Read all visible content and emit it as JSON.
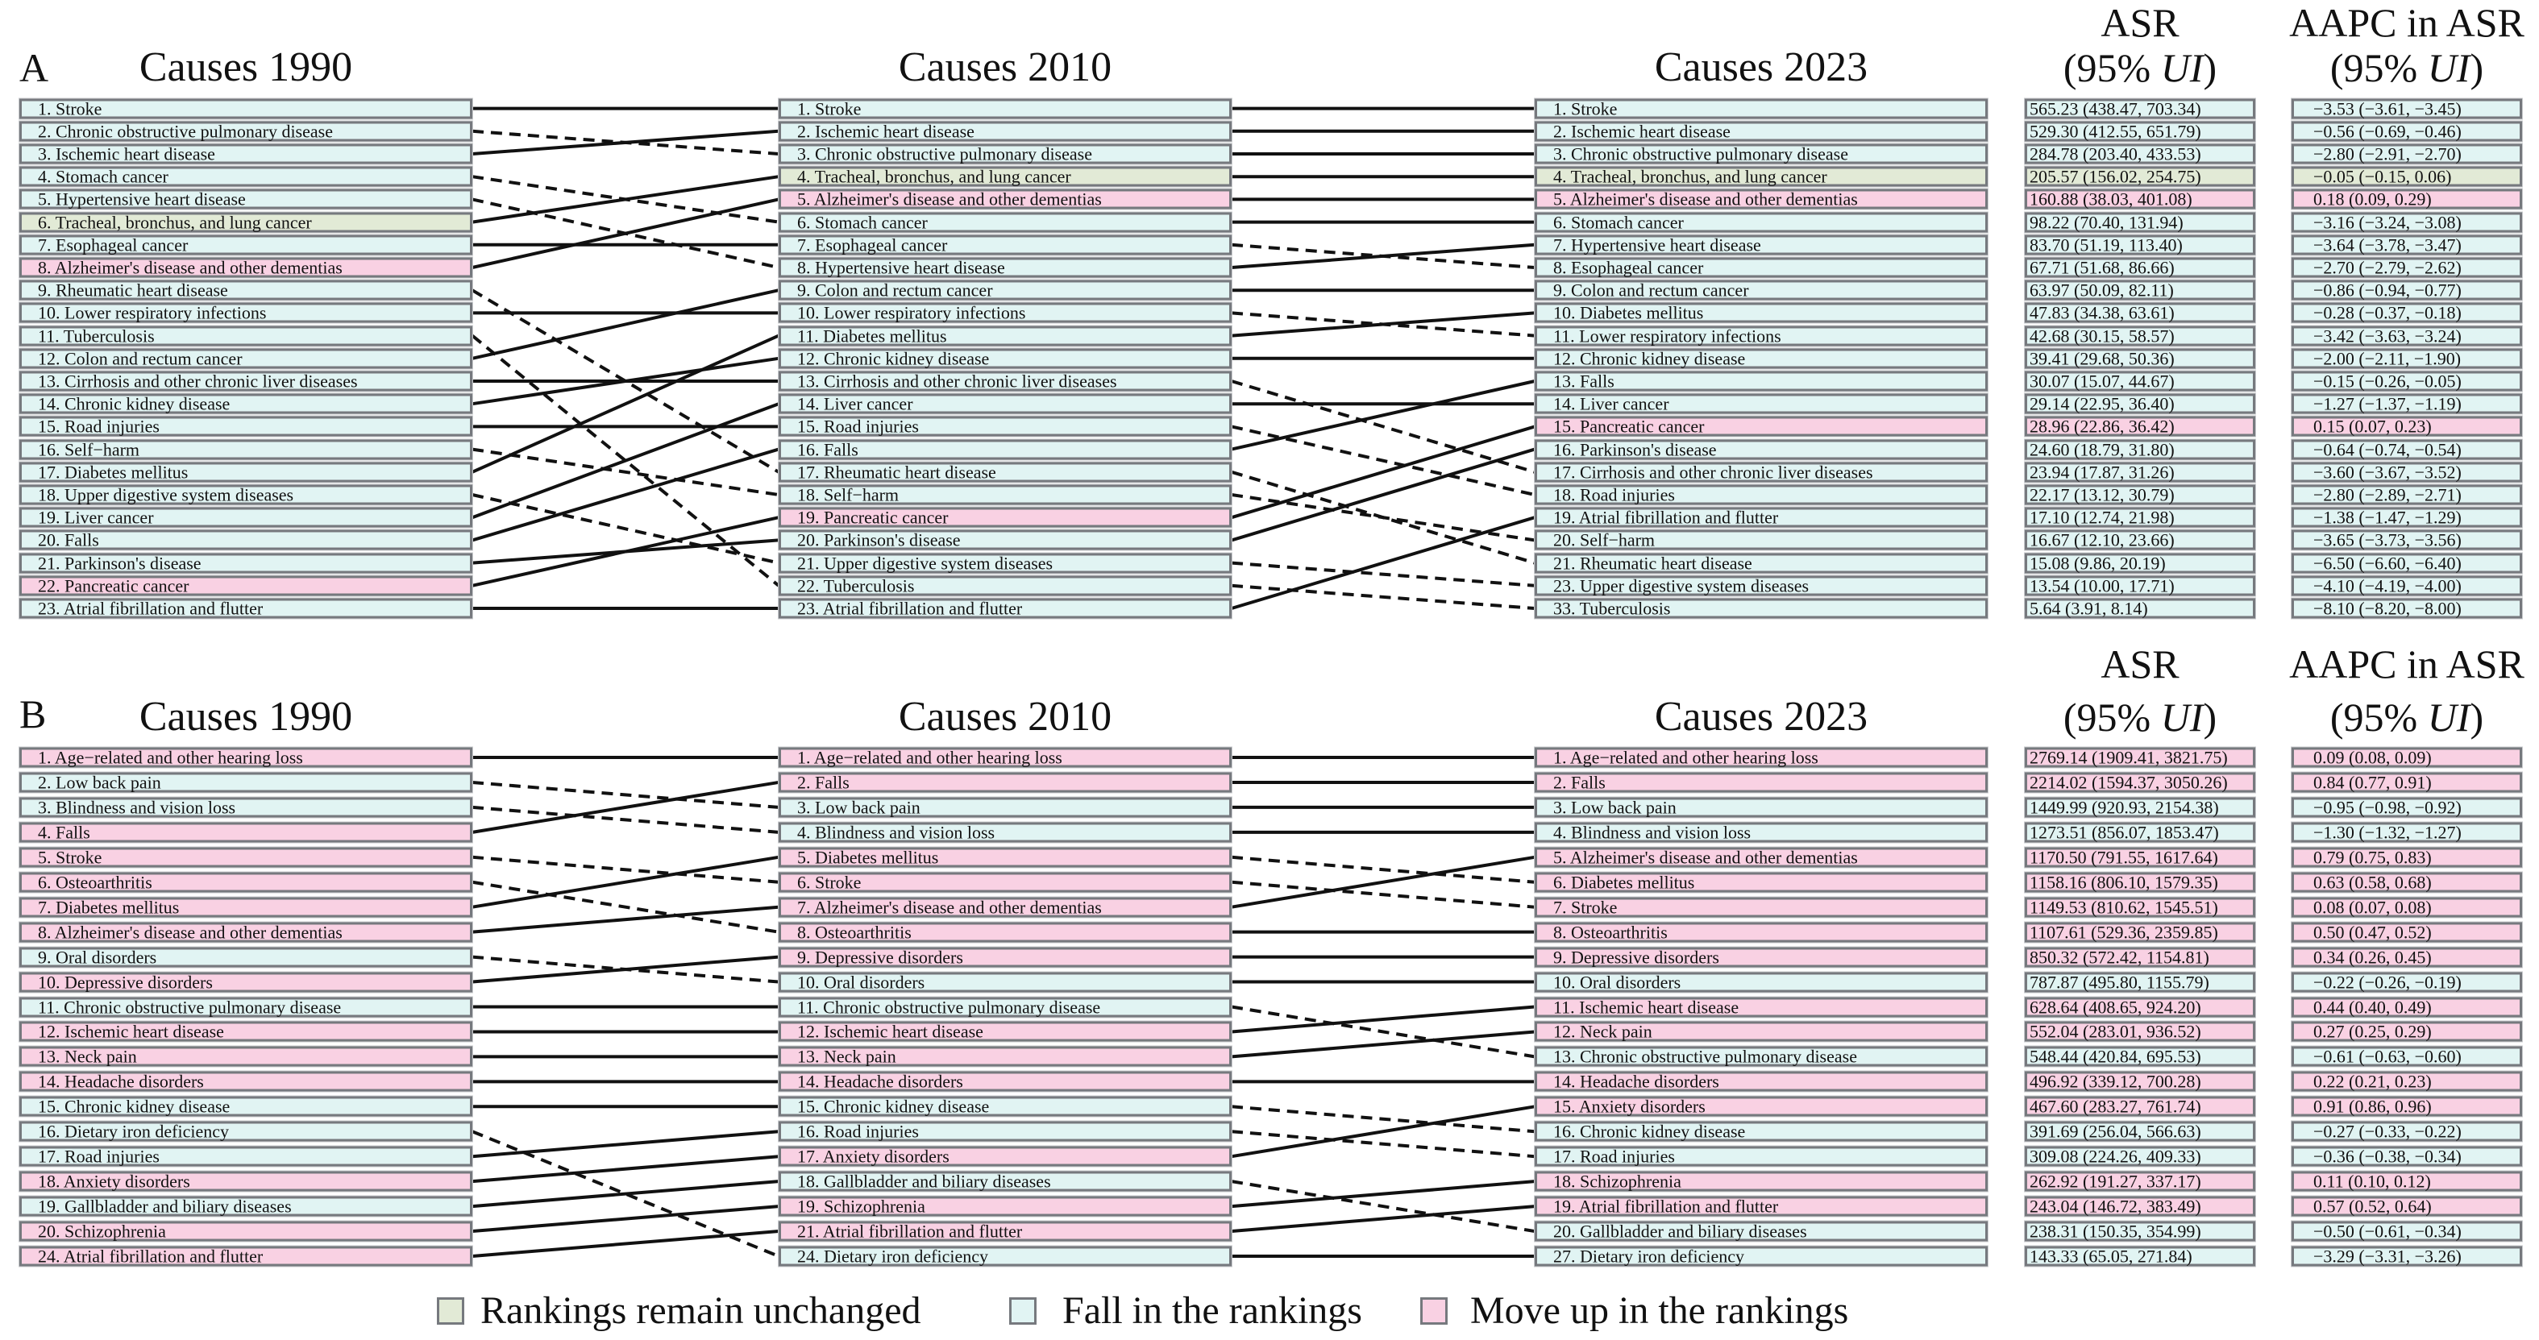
{
  "colors": {
    "unchanged": "#e2ead6",
    "fall": "#e1f4f3",
    "up": "#f9d1e3",
    "border": "#76797e",
    "line": "#111111"
  },
  "legend": [
    {
      "status": "unchanged",
      "label": "Rankings remain unchanged"
    },
    {
      "status": "fall",
      "label": "Fall in the rankings"
    },
    {
      "status": "up",
      "label": "Move up in the rankings"
    }
  ],
  "chart_data": {
    "type": "bump",
    "line_style": {
      "solid": "rank rises or stays",
      "dashed": "rank falls"
    },
    "panels": [
      {
        "label": "A",
        "asr_title": "ASR",
        "aapc_title": "AAPC in ASR",
        "ci_open": "(95% ",
        "ci_italic": "UI",
        "ci_close": ")",
        "columns": [
          {
            "title": "Causes 1990",
            "items": [
              "1. Stroke",
              "2. Chronic obstructive pulmonary disease",
              "3. Ischemic heart disease",
              "4. Stomach cancer",
              "5. Hypertensive heart disease",
              "6. Tracheal, bronchus, and lung cancer",
              "7. Esophageal cancer",
              "8. Alzheimer's disease and other dementias",
              "9. Rheumatic heart disease",
              "10. Lower respiratory infections",
              "11. Tuberculosis",
              "12. Colon and rectum cancer",
              "13. Cirrhosis and other chronic liver diseases",
              "14. Chronic kidney disease",
              "15. Road injuries",
              "16. Self−harm",
              "17. Diabetes mellitus",
              "18. Upper digestive system diseases",
              "19. Liver cancer",
              "20. Falls",
              "21. Parkinson's disease",
              "22. Pancreatic cancer",
              "23. Atrial fibrillation and flutter"
            ]
          },
          {
            "title": "Causes 2010",
            "items": [
              "1. Stroke",
              "2. Ischemic heart disease",
              "3. Chronic obstructive pulmonary disease",
              "4. Tracheal, bronchus, and lung cancer",
              "5. Alzheimer's disease and other dementias",
              "6. Stomach cancer",
              "7. Esophageal cancer",
              "8. Hypertensive heart disease",
              "9. Colon and rectum cancer",
              "10. Lower respiratory infections",
              "11. Diabetes mellitus",
              "12. Chronic kidney disease",
              "13. Cirrhosis and other chronic liver diseases",
              "14. Liver cancer",
              "15. Road injuries",
              "16. Falls",
              "17. Rheumatic heart disease",
              "18. Self−harm",
              "19. Pancreatic cancer",
              "20. Parkinson's disease",
              "21. Upper digestive system diseases",
              "22. Tuberculosis",
              "23. Atrial fibrillation and flutter"
            ]
          },
          {
            "title": "Causes 2023",
            "items": [
              "1. Stroke",
              "2. Ischemic heart disease",
              "3. Chronic obstructive pulmonary disease",
              "4. Tracheal, bronchus, and lung cancer",
              "5. Alzheimer's disease and other dementias",
              "6. Stomach cancer",
              "7. Hypertensive heart disease",
              "8. Esophageal cancer",
              "9. Colon and rectum cancer",
              "10. Diabetes mellitus",
              "11. Lower respiratory infections",
              "12. Chronic kidney disease",
              "13. Falls",
              "14. Liver cancer",
              "15. Pancreatic cancer",
              "16. Parkinson's disease",
              "17. Cirrhosis and other chronic liver diseases",
              "18. Road injuries",
              "19. Atrial fibrillation and flutter",
              "20. Self−harm",
              "21. Rheumatic heart disease",
              "23. Upper digestive system diseases",
              "33. Tuberculosis"
            ]
          }
        ],
        "status": {
          "Tracheal, bronchus, and lung cancer": "unchanged",
          "Alzheimer's disease and other dementias": "up",
          "Pancreatic cancer": "up",
          "default": "fall"
        },
        "asr": [
          "565.23 (438.47, 703.34)",
          "529.30 (412.55, 651.79)",
          "284.78 (203.40, 433.53)",
          "205.57 (156.02, 254.75)",
          "160.88 (38.03, 401.08)",
          "98.22 (70.40, 131.94)",
          "83.70 (51.19, 113.40)",
          "67.71 (51.68, 86.66)",
          "63.97 (50.09, 82.11)",
          "47.83 (34.38, 63.61)",
          "42.68 (30.15, 58.57)",
          "39.41 (29.68, 50.36)",
          "30.07 (15.07, 44.67)",
          "29.14 (22.95, 36.40)",
          "28.96 (22.86, 36.42)",
          "24.60 (18.79, 31.80)",
          "23.94 (17.87, 31.26)",
          "22.17 (13.12, 30.79)",
          "17.10 (12.74, 21.98)",
          "16.67 (12.10, 23.66)",
          "15.08 (9.86, 20.19)",
          "13.54 (10.00, 17.71)",
          "5.64 (3.91, 8.14)"
        ],
        "aapc": [
          "−3.53 (−3.61, −3.45)",
          "−0.56 (−0.69, −0.46)",
          "−2.80 (−2.91, −2.70)",
          "−0.05 (−0.15, 0.06)",
          "0.18 (0.09, 0.29)",
          "−3.16 (−3.24, −3.08)",
          "−3.64 (−3.78, −3.47)",
          "−2.70 (−2.79, −2.62)",
          "−0.86 (−0.94, −0.77)",
          "−0.28 (−0.37, −0.18)",
          "−3.42 (−3.63, −3.24)",
          "−2.00 (−2.11, −1.90)",
          "−0.15 (−0.26, −0.05)",
          "−1.27 (−1.37, −1.19)",
          "0.15 (0.07, 0.23)",
          "−0.64 (−0.74, −0.54)",
          "−3.60 (−3.67, −3.52)",
          "−2.80 (−2.89, −2.71)",
          "−1.38 (−1.47, −1.29)",
          "−3.65 (−3.73, −3.56)",
          "−6.50 (−6.60, −6.40)",
          "−4.10 (−4.19, −4.00)",
          "−8.10 (−8.20, −8.00)"
        ]
      },
      {
        "label": "B",
        "asr_title": "ASR",
        "aapc_title": "AAPC in ASR",
        "ci_open": "(95% ",
        "ci_italic": "UI",
        "ci_close": ")",
        "columns": [
          {
            "title": "Causes 1990",
            "items": [
              "1. Age−related and other hearing loss",
              "2. Low back pain",
              "3. Blindness and vision loss",
              "4. Falls",
              "5. Stroke",
              "6. Osteoarthritis",
              "7. Diabetes mellitus",
              "8. Alzheimer's disease and other dementias",
              "9. Oral disorders",
              "10. Depressive disorders",
              "11. Chronic obstructive pulmonary disease",
              "12. Ischemic heart disease",
              "13. Neck pain",
              "14. Headache disorders",
              "15. Chronic kidney disease",
              "16. Dietary iron deficiency",
              "17. Road injuries",
              "18. Anxiety disorders",
              "19. Gallbladder and biliary diseases",
              "20. Schizophrenia",
              "24. Atrial fibrillation and flutter"
            ]
          },
          {
            "title": "Causes 2010",
            "items": [
              "1. Age−related and other hearing loss",
              "2. Falls",
              "3. Low back pain",
              "4. Blindness and vision loss",
              "5. Diabetes mellitus",
              "6. Stroke",
              "7. Alzheimer's disease and other dementias",
              "8. Osteoarthritis",
              "9. Depressive disorders",
              "10. Oral disorders",
              "11. Chronic obstructive pulmonary disease",
              "12. Ischemic heart disease",
              "13. Neck pain",
              "14. Headache disorders",
              "15. Chronic kidney disease",
              "16. Road injuries",
              "17. Anxiety disorders",
              "18. Gallbladder and biliary diseases",
              "19. Schizophrenia",
              "21. Atrial fibrillation and flutter",
              "24. Dietary iron deficiency"
            ]
          },
          {
            "title": "Causes 2023",
            "items": [
              "1. Age−related and other hearing loss",
              "2. Falls",
              "3. Low back pain",
              "4. Blindness and vision loss",
              "5. Alzheimer's disease and other dementias",
              "6. Diabetes mellitus",
              "7. Stroke",
              "8. Osteoarthritis",
              "9. Depressive disorders",
              "10. Oral disorders",
              "11. Ischemic heart disease",
              "12. Neck pain",
              "13. Chronic obstructive pulmonary disease",
              "14. Headache disorders",
              "15. Anxiety disorders",
              "16. Chronic kidney disease",
              "17. Road injuries",
              "18. Schizophrenia",
              "19. Atrial fibrillation and flutter",
              "20. Gallbladder and biliary diseases",
              "27. Dietary iron deficiency"
            ]
          }
        ],
        "status": {
          "Age−related and other hearing loss": "up",
          "Falls": "up",
          "Stroke": "up",
          "Osteoarthritis": "up",
          "Diabetes mellitus": "up",
          "Alzheimer's disease and other dementias": "up",
          "Depressive disorders": "up",
          "Ischemic heart disease": "up",
          "Neck pain": "up",
          "Headache disorders": "up",
          "Anxiety disorders": "up",
          "Schizophrenia": "up",
          "Atrial fibrillation and flutter": "up",
          "default": "fall"
        },
        "asr": [
          "2769.14 (1909.41, 3821.75)",
          "2214.02 (1594.37, 3050.26)",
          "1449.99 (920.93, 2154.38)",
          "1273.51 (856.07, 1853.47)",
          "1170.50 (791.55, 1617.64)",
          "1158.16 (806.10, 1579.35)",
          "1149.53 (810.62, 1545.51)",
          "1107.61 (529.36, 2359.85)",
          "850.32 (572.42, 1154.81)",
          "787.87 (495.80, 1155.79)",
          "628.64 (408.65, 924.20)",
          "552.04 (283.01, 936.52)",
          "548.44 (420.84, 695.53)",
          "496.92 (339.12, 700.28)",
          "467.60 (283.27, 761.74)",
          "391.69 (256.04, 566.63)",
          "309.08 (224.26, 409.33)",
          "262.92 (191.27, 337.17)",
          "243.04 (146.72, 383.49)",
          "238.31 (150.35, 354.99)",
          "143.33 (65.05, 271.84)"
        ],
        "aapc": [
          "0.09 (0.08, 0.09)",
          "0.84 (0.77, 0.91)",
          "−0.95 (−0.98, −0.92)",
          "−1.30 (−1.32, −1.27)",
          "0.79 (0.75, 0.83)",
          "0.63 (0.58, 0.68)",
          "0.08 (0.07, 0.08)",
          "0.50 (0.47, 0.52)",
          "0.34 (0.26, 0.45)",
          "−0.22 (−0.26, −0.19)",
          "0.44 (0.40, 0.49)",
          "0.27 (0.25, 0.29)",
          "−0.61 (−0.63, −0.60)",
          "0.22 (0.21, 0.23)",
          "0.91 (0.86, 0.96)",
          "−0.27 (−0.33, −0.22)",
          "−0.36 (−0.38, −0.34)",
          "0.11 (0.10, 0.12)",
          "0.57 (0.52, 0.64)",
          "−0.50 (−0.61, −0.34)",
          "−3.29 (−3.31, −3.26)"
        ]
      }
    ]
  }
}
